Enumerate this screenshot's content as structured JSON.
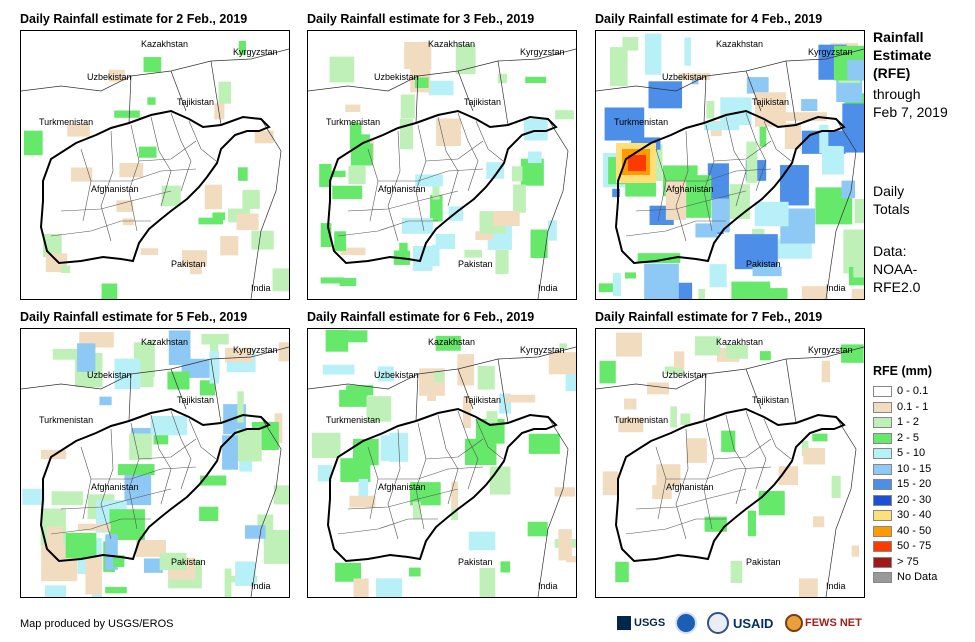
{
  "panels": [
    {
      "title": "Daily Rainfall estimate for 2 Feb., 2019",
      "intensity": 1
    },
    {
      "title": "Daily Rainfall estimate for 3 Feb., 2019",
      "intensity": 2
    },
    {
      "title": "Daily Rainfall estimate for 4 Feb., 2019",
      "intensity": 4
    },
    {
      "title": "Daily Rainfall estimate for 5 Feb., 2019",
      "intensity": 3
    },
    {
      "title": "Daily Rainfall estimate for 6 Feb., 2019",
      "intensity": 2
    },
    {
      "title": "Daily Rainfall estimate for 7 Feb., 2019",
      "intensity": 1
    }
  ],
  "labels": {
    "kazakhstan": "Kazakhstan",
    "kyrgyzstan": "Kyrgyzstan",
    "uzbekistan": "Uzbekistan",
    "tajikistan": "Tajikistan",
    "turkmenistan": "Turkmenistan",
    "afghanistan": "Afghanistan",
    "pakistan": "Pakistan",
    "india": "India"
  },
  "side": {
    "title_l1": "Rainfall",
    "title_l2": "Estimate",
    "title_l3": "(RFE)",
    "through": "through",
    "date": "Feb 7, 2019",
    "daily": "Daily",
    "totals": "Totals",
    "data_label": "Data:",
    "noaa": "NOAA-",
    "rfe": "RFE2.0"
  },
  "legend": {
    "title": "RFE (mm)",
    "items": [
      {
        "label": "0 - 0.1",
        "color": "#ffffff"
      },
      {
        "label": "0.1 - 1",
        "color": "#f2dcc0"
      },
      {
        "label": "1 - 2",
        "color": "#bff0b8"
      },
      {
        "label": "2 - 5",
        "color": "#66e86a"
      },
      {
        "label": "5 - 10",
        "color": "#b8f0f8"
      },
      {
        "label": "10 - 15",
        "color": "#8ec8f4"
      },
      {
        "label": "15 - 20",
        "color": "#4d8ee8"
      },
      {
        "label": "20 - 30",
        "color": "#1c4fd8"
      },
      {
        "label": "30 - 40",
        "color": "#fde07a"
      },
      {
        "label": "40 - 50",
        "color": "#ff9a00"
      },
      {
        "label": "50 - 75",
        "color": "#ff3a00"
      },
      {
        "label": "> 75",
        "color": "#a01818"
      },
      {
        "label": "No Data",
        "color": "#999999"
      }
    ]
  },
  "footer": "Map produced by USGS/EROS",
  "logos": {
    "usgs": "USGS",
    "usaid": "USAID",
    "fewsnet": "FEWS NET"
  }
}
